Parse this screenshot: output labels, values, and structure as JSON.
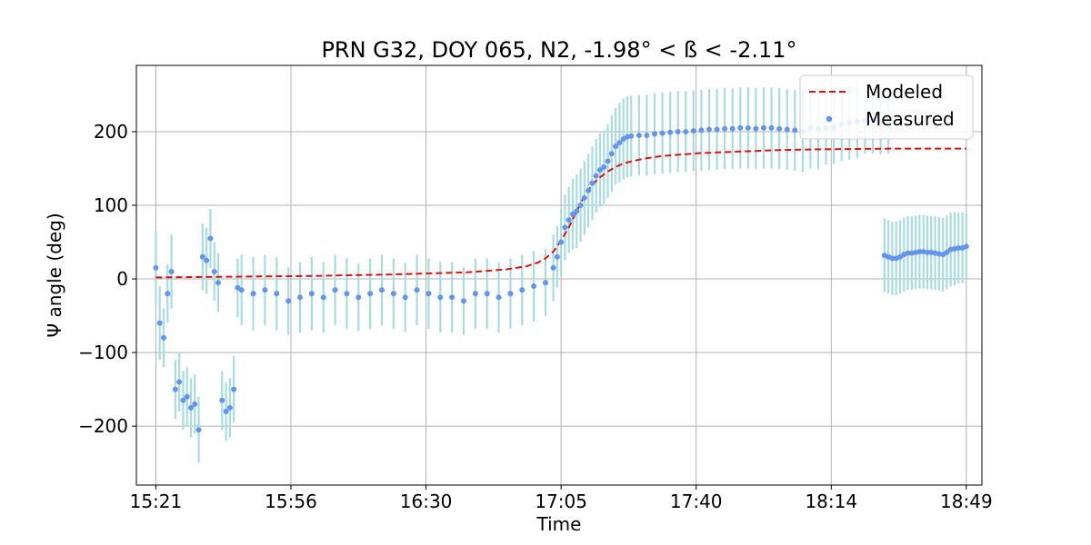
{
  "chart_data": {
    "type": "line",
    "title": "PRN G32, DOY 065, N2, -1.98° < ß < -2.11°",
    "xlabel": "Time",
    "ylabel": "Ψ angle (deg)",
    "x_ticks": [
      "15:21",
      "15:56",
      "16:30",
      "17:05",
      "17:40",
      "18:14",
      "18:49"
    ],
    "y_ticks": [
      -200,
      -100,
      0,
      100,
      200
    ],
    "xlim_minutes": [
      -5,
      212
    ],
    "ylim": [
      -280,
      290
    ],
    "grid": true,
    "legend_position": "top-right",
    "colors": {
      "modeled": "#dd1111",
      "measured": "#6495ed",
      "error_bar": "#a8dde0",
      "grid": "#b0b0b0"
    },
    "series": [
      {
        "name": "Modeled",
        "style": "dashed-line",
        "x_minutes": [
          0,
          20,
          40,
          60,
          80,
          90,
          95,
          98,
          100,
          102,
          104,
          106,
          108,
          110,
          112,
          114,
          116,
          118,
          120,
          125,
          130,
          140,
          150,
          160,
          170,
          180,
          190,
          200,
          208
        ],
        "y": [
          2,
          3,
          4,
          6,
          9,
          13,
          17,
          22,
          28,
          37,
          52,
          70,
          92,
          113,
          128,
          138,
          146,
          152,
          157,
          163,
          167,
          171,
          173,
          175,
          176,
          176.5,
          177,
          177,
          177
        ]
      },
      {
        "name": "Measured",
        "style": "markers-with-errorbars",
        "segments": [
          {
            "x_minutes": [
              0,
              1,
              2,
              3,
              4,
              5,
              6,
              7,
              8,
              9,
              10,
              11,
              12,
              13,
              14,
              15,
              16
            ],
            "y": [
              15,
              -60,
              -80,
              -20,
              10,
              -150,
              -140,
              -165,
              -160,
              -175,
              -170,
              -205,
              30,
              25,
              55,
              10,
              -5
            ],
            "err": [
              50,
              50,
              40,
              40,
              50,
              40,
              40,
              40,
              40,
              40,
              40,
              45,
              45,
              45,
              40,
              40,
              40
            ]
          },
          {
            "x_minutes": [
              17,
              18,
              19
            ],
            "y": [
              -165,
              -180,
              -175
            ],
            "err": [
              40,
              40,
              40
            ]
          },
          {
            "x_minutes": [
              20,
              21
            ],
            "y": [
              -150,
              -12
            ],
            "err": [
              45,
              40
            ]
          },
          {
            "x_minutes": [
              22,
              25,
              28,
              31,
              34,
              37,
              40,
              43,
              46,
              49,
              52,
              55,
              58,
              61,
              64,
              67,
              70,
              73,
              76,
              79,
              82,
              85,
              88,
              91,
              94,
              97,
              100,
              102,
              103,
              104,
              105,
              106,
              107,
              108,
              109,
              110,
              111,
              112,
              113,
              114,
              115,
              116,
              117,
              118,
              119,
              120,
              121,
              122,
              124,
              126,
              128,
              130,
              132,
              134,
              136,
              138,
              140,
              142,
              144,
              146,
              148,
              150,
              152,
              154,
              156,
              158,
              160,
              162,
              164,
              166,
              168,
              170,
              172,
              174,
              176,
              178,
              180,
              182,
              184,
              186,
              188
            ],
            "y": [
              -15,
              -20,
              -15,
              -20,
              -30,
              -25,
              -20,
              -25,
              -15,
              -20,
              -25,
              -20,
              -15,
              -20,
              -25,
              -15,
              -20,
              -25,
              -25,
              -30,
              -20,
              -20,
              -25,
              -20,
              -15,
              -10,
              -5,
              15,
              30,
              50,
              70,
              80,
              88,
              92,
              100,
              110,
              120,
              130,
              140,
              148,
              152,
              160,
              170,
              180,
              185,
              190,
              193,
              194,
              195,
              195,
              197,
              198,
              199,
              200,
              200,
              201,
              202,
              203,
              203,
              204,
              204,
              205,
              205,
              204,
              205,
              205,
              204,
              203,
              202,
              200,
              205,
              204,
              205,
              206,
              210,
              212,
              214,
              215,
              215,
              214,
              215
            ],
            "err": [
              48,
              50,
              48,
              50,
              46,
              48,
              50,
              48,
              48,
              48,
              46,
              48,
              48,
              48,
              47,
              48,
              48,
              48,
              48,
              46,
              48,
              48,
              48,
              48,
              48,
              48,
              46,
              45,
              42,
              45,
              45,
              45,
              48,
              50,
              50,
              50,
              50,
              50,
              50,
              50,
              50,
              50,
              52,
              52,
              54,
              55,
              55,
              55,
              55,
              55,
              55,
              55,
              55,
              55,
              55,
              55,
              55,
              55,
              55,
              55,
              55,
              55,
              55,
              55,
              55,
              55,
              55,
              55,
              55,
              55,
              55,
              55,
              50,
              50,
              50,
              50,
              50,
              45,
              45,
              45,
              45
            ]
          },
          {
            "x_minutes": [
              187,
              188,
              189,
              190,
              191,
              192,
              193,
              194,
              195,
              196,
              197,
              198,
              199,
              200,
              201,
              202,
              203,
              204,
              205,
              206,
              207,
              208
            ],
            "y": [
              32,
              30,
              28,
              28,
              30,
              33,
              35,
              35,
              36,
              37,
              37,
              36,
              36,
              35,
              34,
              33,
              36,
              40,
              41,
              42,
              42,
              44
            ],
            "err": [
              50,
              50,
              50,
              50,
              50,
              50,
              50,
              50,
              50,
              50,
              50,
              50,
              50,
              50,
              50,
              50,
              50,
              50,
              50,
              48,
              48,
              45
            ]
          }
        ]
      }
    ]
  }
}
